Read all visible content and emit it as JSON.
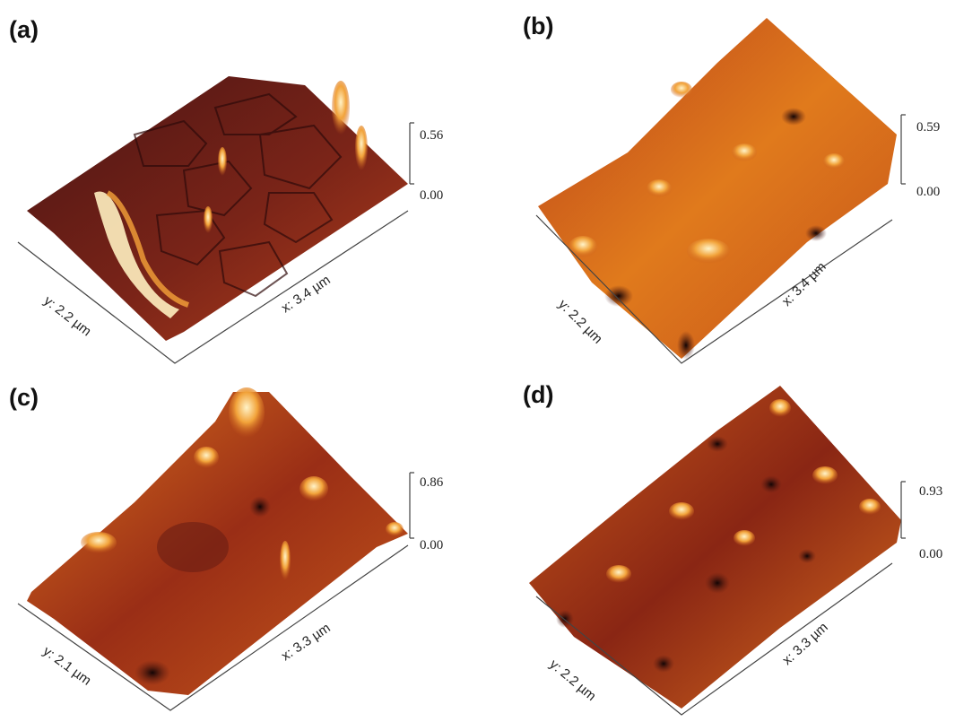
{
  "panels": [
    {
      "id": "a",
      "label": "(a)",
      "x_axis": "x: 3.4 µm",
      "y_axis": "y: 2.2 µm",
      "z_max": "0.56",
      "z_min": "0.00"
    },
    {
      "id": "b",
      "label": "(b)",
      "x_axis": "x: 3.4 µm",
      "y_axis": "y: 2.2 µm",
      "z_max": "0.59",
      "z_min": "0.00"
    },
    {
      "id": "c",
      "label": "(c)",
      "x_axis": "x: 3.3 µm",
      "y_axis": "y: 2.1 µm",
      "z_max": "0.86",
      "z_min": "0.00"
    },
    {
      "id": "d",
      "label": "(d)",
      "x_axis": "x: 3.3 µm",
      "y_axis": "y: 2.2 µm",
      "z_max": "0.93",
      "z_min": "0.00"
    }
  ],
  "colors": {
    "dark": "#3a0d0d",
    "mid": "#a8321a",
    "orange": "#e07a1c",
    "bright": "#ffd27a",
    "axis": "#444444"
  }
}
